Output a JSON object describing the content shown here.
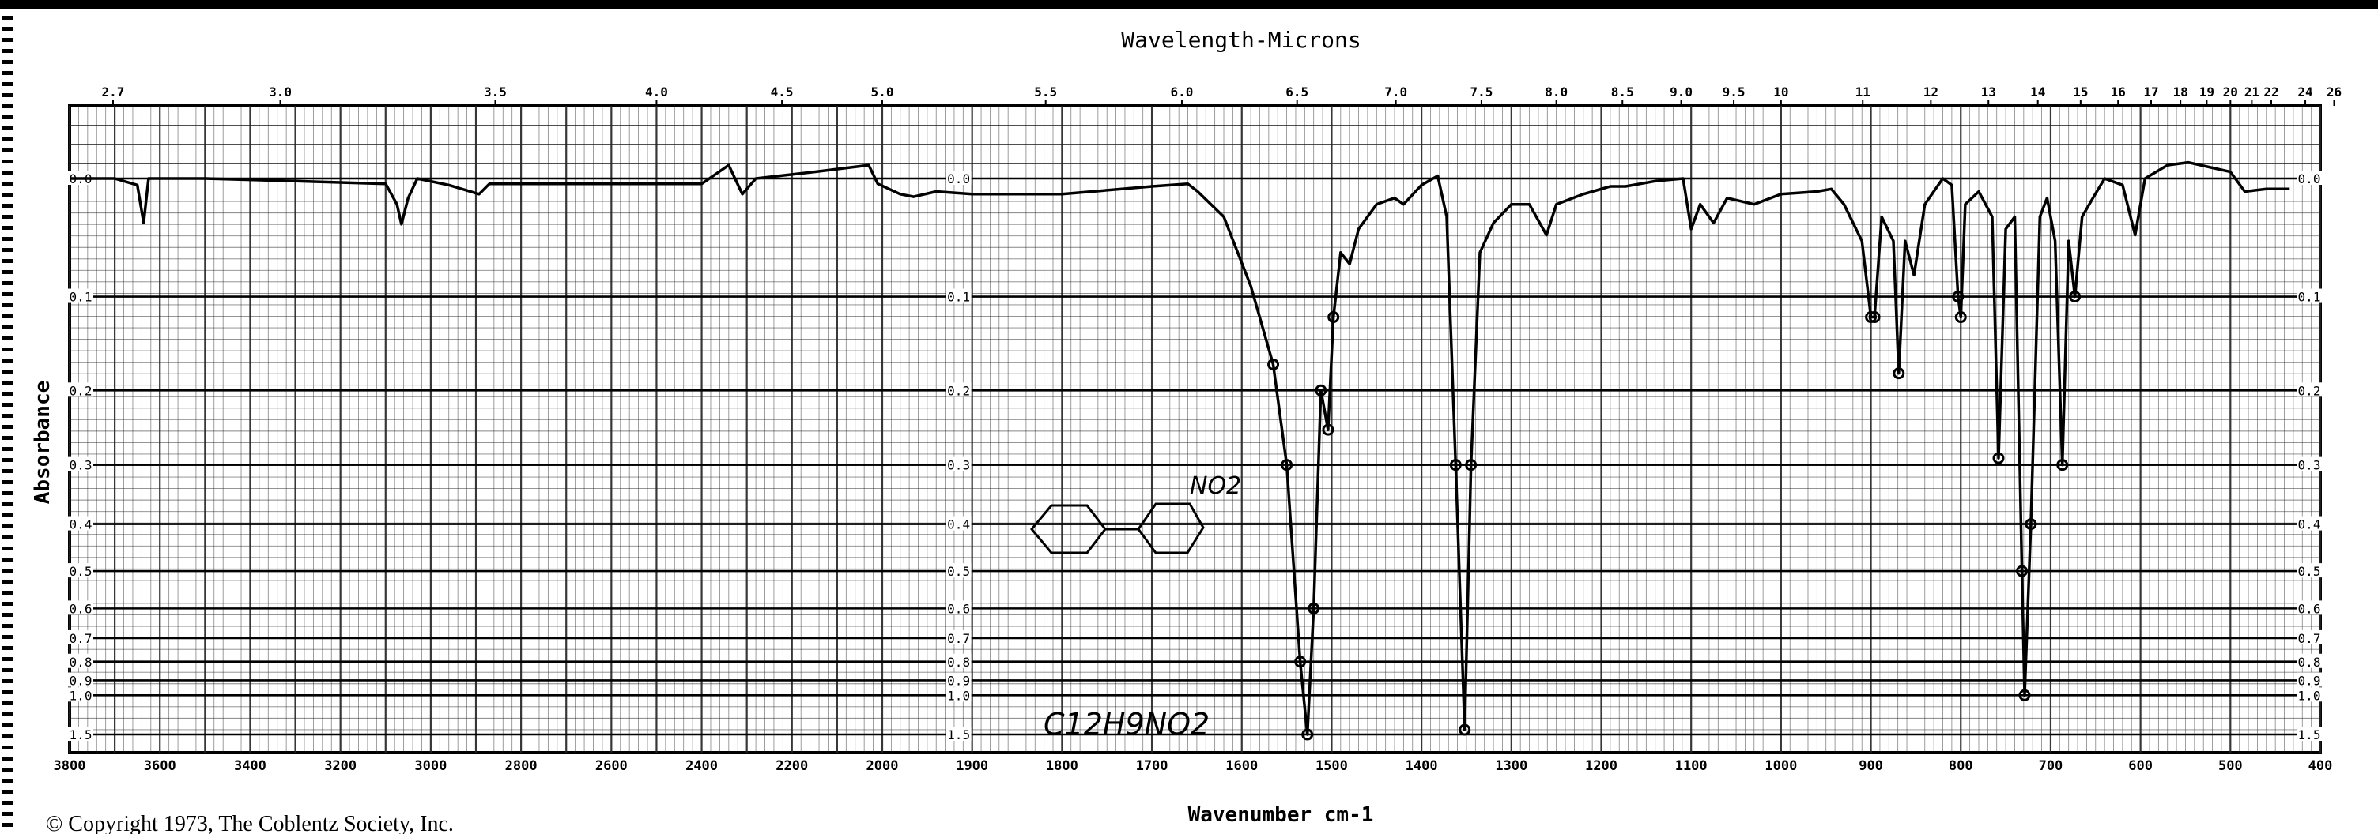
{
  "chart_data": {
    "type": "line",
    "title": "Wavelength-Microns",
    "xlabel": "Wavenumber cm-1",
    "ylabel": "Absorbance",
    "x_axis": {
      "reversed": true,
      "range": [
        3800,
        400
      ],
      "scale_change_at": 2000,
      "tick_labels": [
        "3800",
        "3600",
        "3400",
        "3200",
        "3000",
        "2800",
        "2600",
        "2400",
        "2200",
        "2000",
        "1900",
        "1800",
        "1700",
        "1600",
        "1500",
        "1400",
        "1300",
        "1200",
        "1100",
        "1000",
        "900",
        "800",
        "700",
        "600",
        "500",
        "400"
      ]
    },
    "top_axis": {
      "unit": "microns",
      "tick_labels": [
        "2.7",
        "3.0",
        "3.5",
        "4.0",
        "4.5",
        "5.0",
        "5.5",
        "6.0",
        "6.5",
        "7.0",
        "7.5",
        "8.0",
        "8.5",
        "9.0",
        "9.5",
        "10",
        "11",
        "12",
        "13",
        "14",
        "15",
        "16",
        "17",
        "18",
        "19",
        "20",
        "21",
        "22",
        "24",
        "26"
      ]
    },
    "y_axis": {
      "scale": "absorbance (linear in transmittance)",
      "range": [
        0.0,
        1.5
      ],
      "tick_labels": [
        "0.0",
        "0.1",
        "0.2",
        "0.3",
        "0.4",
        "0.5",
        "0.6",
        "0.7",
        "0.8",
        "0.9",
        "1.0",
        "1.5"
      ]
    },
    "grid": true,
    "series": [
      {
        "points": [
          [
            3800,
            0.0
          ],
          [
            3700,
            0.0
          ],
          [
            3650,
            0.005
          ],
          [
            3636,
            0.035
          ],
          [
            3625,
            0.0
          ],
          [
            3500,
            0.0
          ],
          [
            3300,
            0.002
          ],
          [
            3100,
            0.004
          ],
          [
            3075,
            0.02
          ],
          [
            3065,
            0.036
          ],
          [
            3050,
            0.015
          ],
          [
            3030,
            0.0
          ],
          [
            2960,
            0.005
          ],
          [
            2893,
            0.012
          ],
          [
            2870,
            0.004
          ],
          [
            2700,
            0.004
          ],
          [
            2400,
            0.004
          ],
          [
            2340,
            -0.01
          ],
          [
            2310,
            0.012
          ],
          [
            2280,
            0.0
          ],
          [
            2150,
            -0.005
          ],
          [
            2030,
            -0.01
          ],
          [
            2010,
            0.004
          ],
          [
            1980,
            0.012
          ],
          [
            1965,
            0.014
          ],
          [
            1940,
            0.01
          ],
          [
            1900,
            0.012
          ],
          [
            1800,
            0.012
          ],
          [
            1700,
            0.006
          ],
          [
            1660,
            0.004
          ],
          [
            1649,
            0.01
          ],
          [
            1620,
            0.03
          ],
          [
            1590,
            0.09
          ],
          [
            1565,
            0.17
          ],
          [
            1550,
            0.3
          ],
          [
            1535,
            0.8
          ],
          [
            1527,
            1.5
          ],
          [
            1520,
            0.6
          ],
          [
            1512,
            0.2
          ],
          [
            1504,
            0.25
          ],
          [
            1498,
            0.12
          ],
          [
            1490,
            0.06
          ],
          [
            1480,
            0.07
          ],
          [
            1470,
            0.04
          ],
          [
            1450,
            0.02
          ],
          [
            1430,
            0.015
          ],
          [
            1420,
            0.02
          ],
          [
            1400,
            0.005
          ],
          [
            1382,
            -0.002
          ],
          [
            1372,
            0.03
          ],
          [
            1362,
            0.3
          ],
          [
            1352,
            1.4
          ],
          [
            1345,
            0.3
          ],
          [
            1335,
            0.06
          ],
          [
            1320,
            0.035
          ],
          [
            1300,
            0.02
          ],
          [
            1280,
            0.02
          ],
          [
            1261,
            0.045
          ],
          [
            1250,
            0.02
          ],
          [
            1220,
            0.012
          ],
          [
            1190,
            0.006
          ],
          [
            1173,
            0.006
          ],
          [
            1140,
            0.002
          ],
          [
            1109,
            0.0
          ],
          [
            1100,
            0.04
          ],
          [
            1090,
            0.02
          ],
          [
            1075,
            0.035
          ],
          [
            1060,
            0.015
          ],
          [
            1030,
            0.02
          ],
          [
            1000,
            0.012
          ],
          [
            960,
            0.01
          ],
          [
            944,
            0.008
          ],
          [
            930,
            0.02
          ],
          [
            910,
            0.05
          ],
          [
            900,
            0.12
          ],
          [
            896,
            0.12
          ],
          [
            888,
            0.03
          ],
          [
            875,
            0.05
          ],
          [
            869,
            0.18
          ],
          [
            862,
            0.05
          ],
          [
            852,
            0.08
          ],
          [
            840,
            0.02
          ],
          [
            820,
            0.0
          ],
          [
            810,
            0.005
          ],
          [
            803,
            0.1
          ],
          [
            800,
            0.12
          ],
          [
            795,
            0.02
          ],
          [
            780,
            0.01
          ],
          [
            765,
            0.03
          ],
          [
            758,
            0.29
          ],
          [
            750,
            0.04
          ],
          [
            740,
            0.03
          ],
          [
            732,
            0.5
          ],
          [
            729,
            1.0
          ],
          [
            722,
            0.4
          ],
          [
            712,
            0.03
          ],
          [
            704,
            0.015
          ],
          [
            695,
            0.05
          ],
          [
            687,
            0.3
          ],
          [
            680,
            0.05
          ],
          [
            673,
            0.1
          ],
          [
            665,
            0.03
          ],
          [
            653,
            0.015
          ],
          [
            640,
            0.0
          ],
          [
            620,
            0.005
          ],
          [
            606,
            0.045
          ],
          [
            595,
            0.0
          ],
          [
            570,
            -0.01
          ],
          [
            547,
            -0.012
          ],
          [
            520,
            -0.008
          ],
          [
            500,
            -0.005
          ],
          [
            484,
            0.01
          ],
          [
            460,
            0.008
          ],
          [
            434,
            0.008
          ]
        ]
      }
    ],
    "annotations": {
      "substituent": "NO2",
      "formula": "C12H9NO2"
    },
    "colors": {
      "ink": "#000000",
      "grid": "#1a1a1a",
      "paper": "#ffffff"
    }
  },
  "footer": {
    "copyright": "© Copyright 1973, The Coblentz Society, Inc."
  }
}
